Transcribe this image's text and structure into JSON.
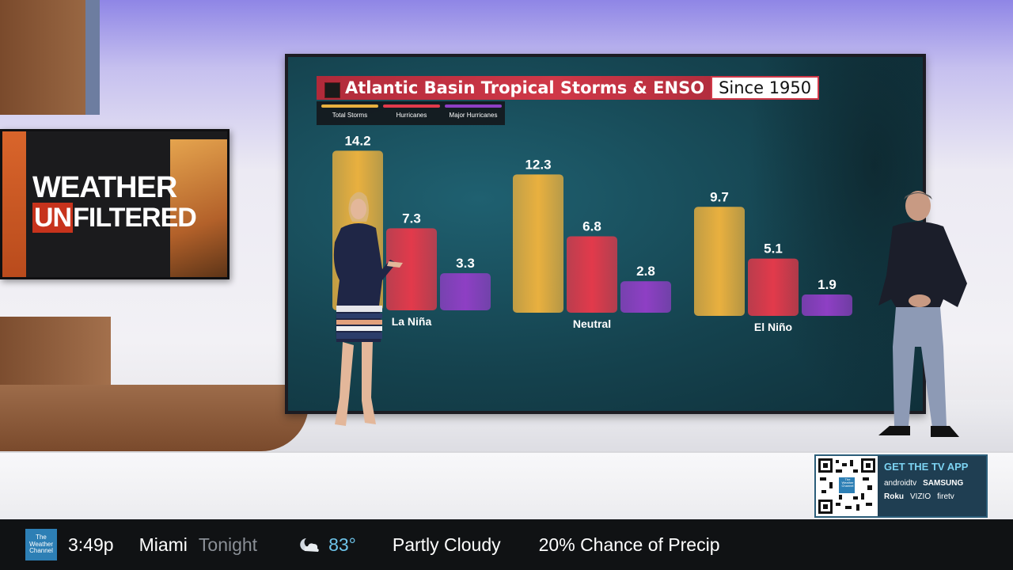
{
  "show_logo": {
    "line1": "WEATHER",
    "line2_prefix": "UN",
    "line2_rest": "FILTERED"
  },
  "colors": {
    "total_storms": "#e9b03f",
    "hurricanes": "#e23a4b",
    "major_hurricanes": "#8e3fc4"
  },
  "chart_data": {
    "type": "bar",
    "title": "Atlantic Basin Tropical Storms & ENSO",
    "subtitle": "Since 1950",
    "categories": [
      "La Niña",
      "Neutral",
      "El Niño"
    ],
    "series": [
      {
        "name": "Total Storms",
        "values": [
          14.2,
          12.3,
          9.7
        ]
      },
      {
        "name": "Hurricanes",
        "values": [
          7.3,
          6.8,
          5.1
        ]
      },
      {
        "name": "Major Hurricanes",
        "values": [
          3.3,
          2.8,
          1.9
        ]
      }
    ],
    "value_labels": [
      [
        "14.2",
        "7.3",
        "3.3"
      ],
      [
        "12.3",
        "6.8",
        "2.8"
      ],
      [
        "9.7",
        "5.1",
        "1.9"
      ]
    ],
    "grid": false,
    "legend_position": "top-left"
  },
  "qr_panel": {
    "heading": "GET THE TV APP",
    "platforms_row1": [
      "androidtv",
      "SAMSUNG"
    ],
    "platforms_row2": [
      "Roku",
      "VIZIO",
      "firetv"
    ],
    "qr_center_label": "The Weather Channel"
  },
  "ticker": {
    "logo_text": "The Weather Channel",
    "time": "3:49p",
    "city": "Miami",
    "period": "Tonight",
    "weather_icon": "partly-cloudy-night-icon",
    "temperature": "83°",
    "condition": "Partly Cloudy",
    "precip": "20% Chance of Precip"
  }
}
